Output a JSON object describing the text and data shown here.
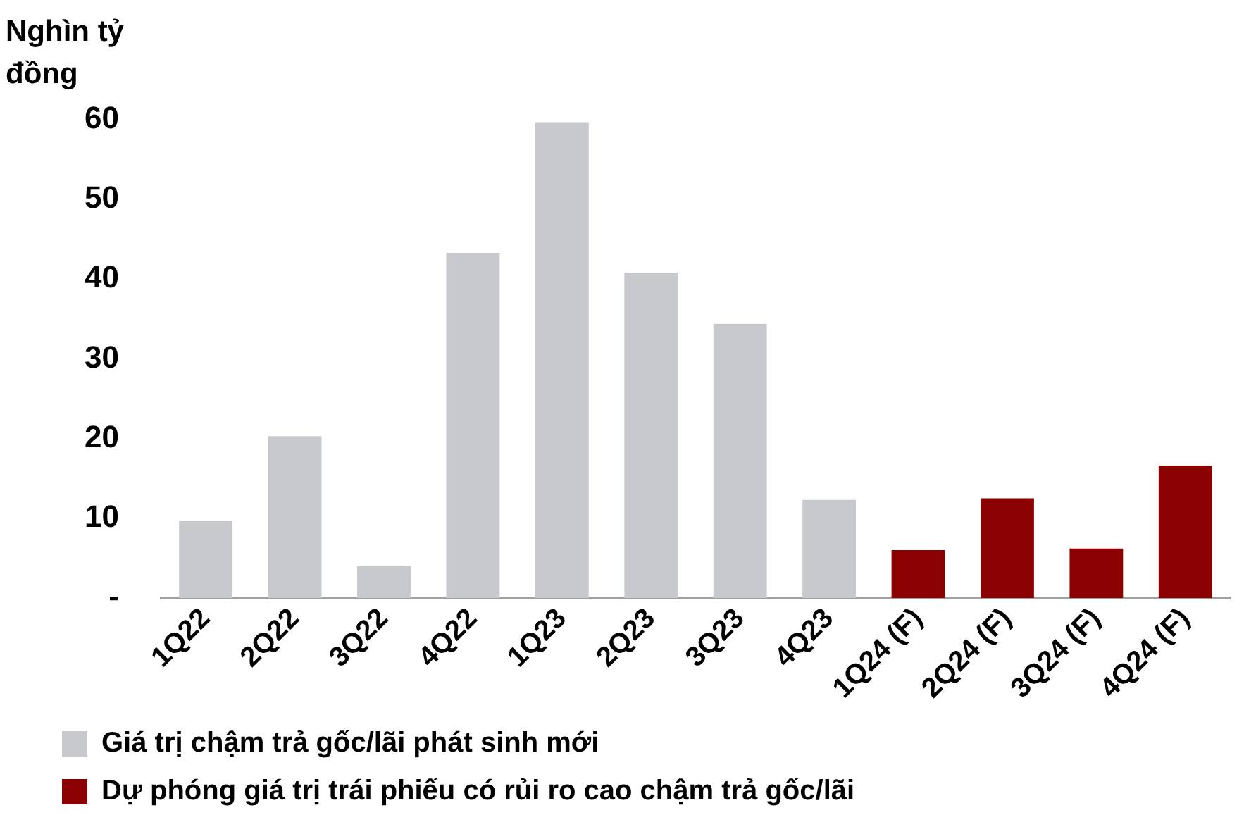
{
  "chart_data": {
    "type": "bar",
    "ylabel": "Nghìn tỷ đồng",
    "categories": [
      "1Q22",
      "2Q22",
      "3Q22",
      "4Q22",
      "1Q23",
      "2Q23",
      "3Q23",
      "4Q23",
      "1Q24 (F)",
      "2Q24 (F)",
      "3Q24 (F)",
      "4Q24 (F)"
    ],
    "series": [
      {
        "name": "Giá trị chậm trả gốc/lãi phát sinh mới",
        "color": "#c8c9cc",
        "values": [
          9.7,
          20.3,
          4.0,
          43.3,
          59.7,
          40.8,
          34.4,
          12.3,
          null,
          null,
          null,
          null
        ]
      },
      {
        "name": "Dự phóng giá trị trái phiếu có rủi ro cao chậm trả gốc/lãi",
        "color": "#8b0000",
        "values": [
          null,
          null,
          null,
          null,
          null,
          null,
          null,
          null,
          6.0,
          12.5,
          6.2,
          16.6
        ]
      }
    ],
    "ylim": [
      0,
      60
    ],
    "yticks": [
      {
        "value": 0,
        "label": "-"
      },
      10,
      20,
      30,
      40,
      50,
      60
    ],
    "grid": false,
    "legend": "bottom"
  }
}
